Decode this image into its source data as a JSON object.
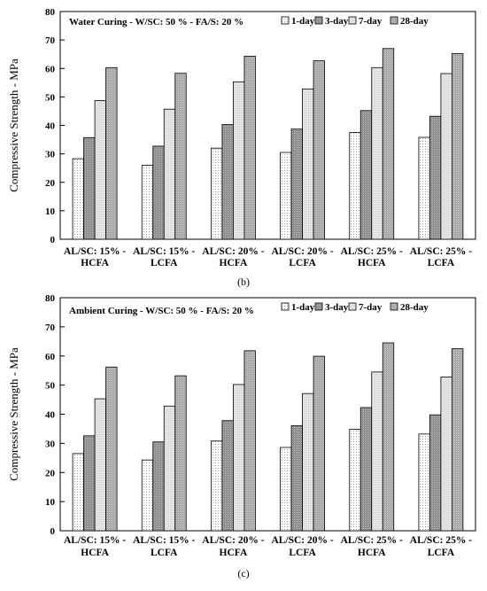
{
  "colors": {
    "background": "#ffffff",
    "axis": "#000000",
    "bar_stroke": "#000000",
    "series_fills": [
      "#ffffff",
      "#9a9a9a",
      "#e4e4e4",
      "#b4b4b4"
    ]
  },
  "chart_data": [
    {
      "type": "bar",
      "panel_label": "(b)",
      "title": "Water Curing - W/SC: 50 % - FA/S: 20 %",
      "ylabel": "Compressive Strength - MPa",
      "xlabel": "",
      "ylim": [
        0,
        80
      ],
      "yticks": [
        0,
        10,
        20,
        30,
        40,
        50,
        60,
        70,
        80
      ],
      "grid": false,
      "legend_position": "top-right",
      "categories": [
        [
          "AL/SC: 15% -",
          "HCFA"
        ],
        [
          "AL/SC: 15% -",
          "LCFA"
        ],
        [
          "AL/SC: 20% -",
          "HCFA"
        ],
        [
          "AL/SC: 20% -",
          "LCFA"
        ],
        [
          "AL/SC: 25% -",
          "HCFA"
        ],
        [
          "AL/SC: 25% -",
          "LCFA"
        ]
      ],
      "series": [
        {
          "name": "1-day",
          "values": [
            28.3,
            26.0,
            32.0,
            30.5,
            37.5,
            35.8
          ]
        },
        {
          "name": "3-day",
          "values": [
            35.7,
            32.7,
            40.3,
            38.7,
            45.2,
            43.2
          ]
        },
        {
          "name": "7-day",
          "values": [
            48.7,
            45.7,
            55.3,
            52.8,
            60.3,
            58.2
          ]
        },
        {
          "name": "28-day",
          "values": [
            60.3,
            58.3,
            64.3,
            62.7,
            67.0,
            65.2
          ]
        }
      ]
    },
    {
      "type": "bar",
      "panel_label": "(c)",
      "title": "Ambient Curing - W/SC: 50 % - FA/S: 20 %",
      "ylabel": "Compressive Strength - MPa",
      "xlabel": "",
      "ylim": [
        0,
        80
      ],
      "yticks": [
        0,
        10,
        20,
        30,
        40,
        50,
        60,
        70,
        80
      ],
      "grid": false,
      "legend_position": "top-right",
      "categories": [
        [
          "AL/SC: 15% -",
          "HCFA"
        ],
        [
          "AL/SC: 15% -",
          "LCFA"
        ],
        [
          "AL/SC: 20% -",
          "HCFA"
        ],
        [
          "AL/SC: 20% -",
          "LCFA"
        ],
        [
          "AL/SC: 25% -",
          "HCFA"
        ],
        [
          "AL/SC: 25% -",
          "LCFA"
        ]
      ],
      "series": [
        {
          "name": "1-day",
          "values": [
            26.5,
            24.3,
            30.8,
            28.6,
            34.8,
            33.2
          ]
        },
        {
          "name": "3-day",
          "values": [
            32.6,
            30.5,
            37.8,
            36.1,
            42.3,
            39.8
          ]
        },
        {
          "name": "7-day",
          "values": [
            45.3,
            42.8,
            50.2,
            47.1,
            54.5,
            52.8
          ]
        },
        {
          "name": "28-day",
          "values": [
            56.2,
            53.2,
            61.8,
            59.9,
            64.5,
            62.5
          ]
        }
      ]
    }
  ]
}
